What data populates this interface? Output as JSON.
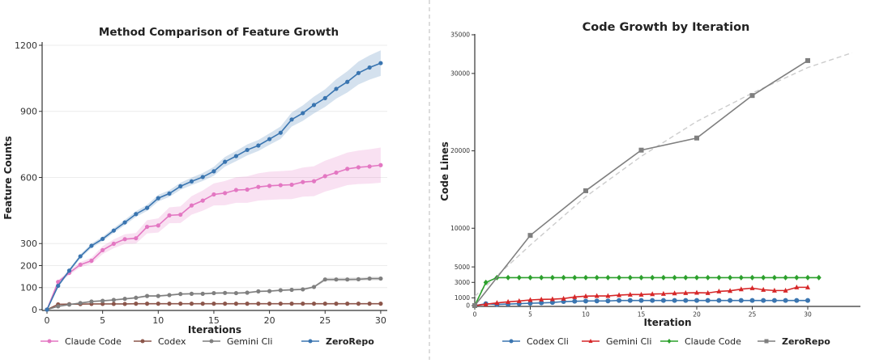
{
  "chart_data": [
    {
      "type": "line",
      "title": "Method Comparison of Feature Growth",
      "xlabel": "Iterations",
      "ylabel": "Feature Counts",
      "xlim": [
        0,
        30
      ],
      "ylim": [
        0,
        1200
      ],
      "xticks": [
        0,
        5,
        10,
        15,
        20,
        25,
        30
      ],
      "yticks": [
        0,
        100,
        200,
        300,
        600,
        900,
        1200
      ],
      "grid": "horizontal",
      "legend_position": "bottom",
      "x": [
        0,
        1,
        2,
        3,
        4,
        5,
        6,
        7,
        8,
        9,
        10,
        11,
        12,
        13,
        14,
        15,
        16,
        17,
        18,
        19,
        20,
        21,
        22,
        23,
        24,
        25,
        26,
        27,
        28,
        29,
        30
      ],
      "series": [
        {
          "name": "Claude Code",
          "color": "#e377c2",
          "marker": "circle",
          "values": [
            0,
            126,
            167,
            204,
            222,
            270,
            299,
            320,
            324,
            376,
            382,
            428,
            431,
            473,
            495,
            523,
            529,
            543,
            545,
            557,
            562,
            565,
            567,
            579,
            583,
            606,
            622,
            639,
            646,
            650,
            656
          ],
          "band": [
            0,
            8,
            10,
            12,
            14,
            18,
            20,
            22,
            24,
            30,
            32,
            36,
            38,
            42,
            46,
            50,
            55,
            58,
            60,
            62,
            64,
            64,
            65,
            66,
            68,
            70,
            72,
            74,
            76,
            78,
            80
          ]
        },
        {
          "name": "Codex",
          "color": "#8c564b",
          "marker": "circle",
          "values": [
            0,
            24,
            25,
            25,
            26,
            26,
            26,
            26,
            27,
            27,
            27,
            27,
            27,
            27,
            27,
            27,
            27,
            27,
            27,
            27,
            27,
            27,
            27,
            27,
            27,
            27,
            27,
            27,
            27,
            27,
            27
          ],
          "band": [
            0,
            2,
            2,
            2,
            2,
            2,
            2,
            2,
            2,
            2,
            2,
            2,
            2,
            2,
            2,
            2,
            2,
            2,
            2,
            2,
            2,
            2,
            2,
            2,
            2,
            2,
            2,
            2,
            2,
            2,
            2
          ]
        },
        {
          "name": "Gemini Cli",
          "color": "#7f7f7f",
          "marker": "circle",
          "values": [
            0,
            15,
            23,
            30,
            37,
            40,
            44,
            49,
            54,
            62,
            62,
            66,
            71,
            72,
            72,
            75,
            76,
            75,
            77,
            83,
            84,
            88,
            90,
            92,
            103,
            137,
            137,
            137,
            138,
            141,
            141
          ],
          "band": [
            0,
            3,
            3,
            3,
            3,
            4,
            4,
            4,
            4,
            4,
            4,
            4,
            4,
            4,
            4,
            4,
            4,
            4,
            4,
            4,
            4,
            4,
            4,
            4,
            5,
            8,
            8,
            8,
            8,
            8,
            8
          ]
        },
        {
          "name": "ZeroRepo",
          "color": "#3a75b0",
          "marker": "circle",
          "bold": true,
          "values": [
            0,
            108,
            177,
            242,
            290,
            321,
            359,
            396,
            434,
            462,
            506,
            527,
            560,
            582,
            602,
            628,
            671,
            697,
            725,
            745,
            774,
            803,
            863,
            892,
            929,
            960,
            1002,
            1034,
            1074,
            1099,
            1119
          ],
          "band": [
            0,
            8,
            8,
            9,
            10,
            10,
            11,
            12,
            13,
            14,
            15,
            15,
            16,
            17,
            18,
            20,
            22,
            23,
            25,
            25,
            26,
            28,
            32,
            35,
            38,
            40,
            44,
            48,
            52,
            55,
            58
          ]
        }
      ]
    },
    {
      "type": "line",
      "title": "Code Growth by Iteration",
      "xlabel": "Iteration",
      "ylabel": "Code Lines",
      "xlim": [
        0,
        34
      ],
      "ylim": [
        0,
        35000
      ],
      "xticks": [
        0,
        5,
        10,
        15,
        20,
        25,
        30
      ],
      "yticks": [
        0,
        1000,
        3000,
        5000,
        10000,
        20000,
        30000,
        35000
      ],
      "grid": "none",
      "legend_position": "bottom",
      "series": [
        {
          "name": "Codex Cli",
          "color": "#3a75b0",
          "marker": "circle",
          "x": [
            0,
            1,
            2,
            3,
            4,
            5,
            6,
            7,
            8,
            9,
            10,
            11,
            12,
            13,
            14,
            15,
            16,
            17,
            18,
            19,
            20,
            21,
            22,
            23,
            24,
            25,
            26,
            27,
            28,
            29,
            30
          ],
          "values": [
            0,
            243,
            150,
            200,
            250,
            300,
            350,
            400,
            521,
            556,
            591,
            600,
            600,
            660,
            660,
            660,
            660,
            660,
            660,
            660,
            660,
            660,
            660,
            660,
            660,
            660,
            660,
            660,
            660,
            660,
            660
          ]
        },
        {
          "name": "Gemini Cli",
          "color": "#d62728",
          "marker": "triangle",
          "x": [
            0,
            1,
            2,
            3,
            4,
            5,
            6,
            7,
            8,
            9,
            10,
            11,
            12,
            13,
            14,
            15,
            16,
            17,
            18,
            19,
            20,
            21,
            22,
            23,
            24,
            25,
            26,
            27,
            28,
            29,
            30
          ],
          "values": [
            0,
            174,
            348,
            487,
            591,
            730,
            800,
            834,
            904,
            1112,
            1217,
            1251,
            1251,
            1356,
            1425,
            1425,
            1495,
            1529,
            1599,
            1634,
            1668,
            1634,
            1842,
            1912,
            2120,
            2259,
            2051,
            1947,
            1947,
            2364,
            2364
          ]
        },
        {
          "name": "Claude Code",
          "color": "#2ca02c",
          "marker": "diamond",
          "x": [
            0,
            1,
            2,
            3,
            4,
            5,
            6,
            7,
            8,
            9,
            10,
            11,
            12,
            13,
            14,
            15,
            16,
            17,
            18,
            19,
            20,
            21,
            22,
            23,
            24,
            25,
            26,
            27,
            28,
            29,
            30,
            31
          ],
          "values": [
            0,
            2989,
            3615,
            3615,
            3615,
            3615,
            3615,
            3615,
            3615,
            3615,
            3615,
            3615,
            3615,
            3615,
            3615,
            3615,
            3615,
            3615,
            3615,
            3615,
            3615,
            3615,
            3615,
            3615,
            3615,
            3615,
            3615,
            3615,
            3615,
            3615,
            3615,
            3615
          ]
        },
        {
          "name": "ZeroRepo",
          "color": "#7f7f7f",
          "marker": "square",
          "bold": true,
          "x": [
            0,
            5,
            10,
            15,
            20,
            25,
            30
          ],
          "values": [
            0,
            9072,
            14843,
            20091,
            21655,
            27147,
            31666
          ]
        }
      ],
      "trend": {
        "color": "#cccccc",
        "style": "dashed",
        "x": [
          0,
          5,
          10,
          15,
          20,
          25,
          30,
          34
        ],
        "values": [
          1200,
          7821,
          14078,
          19292,
          23800,
          27460,
          30760,
          32674
        ]
      }
    }
  ]
}
